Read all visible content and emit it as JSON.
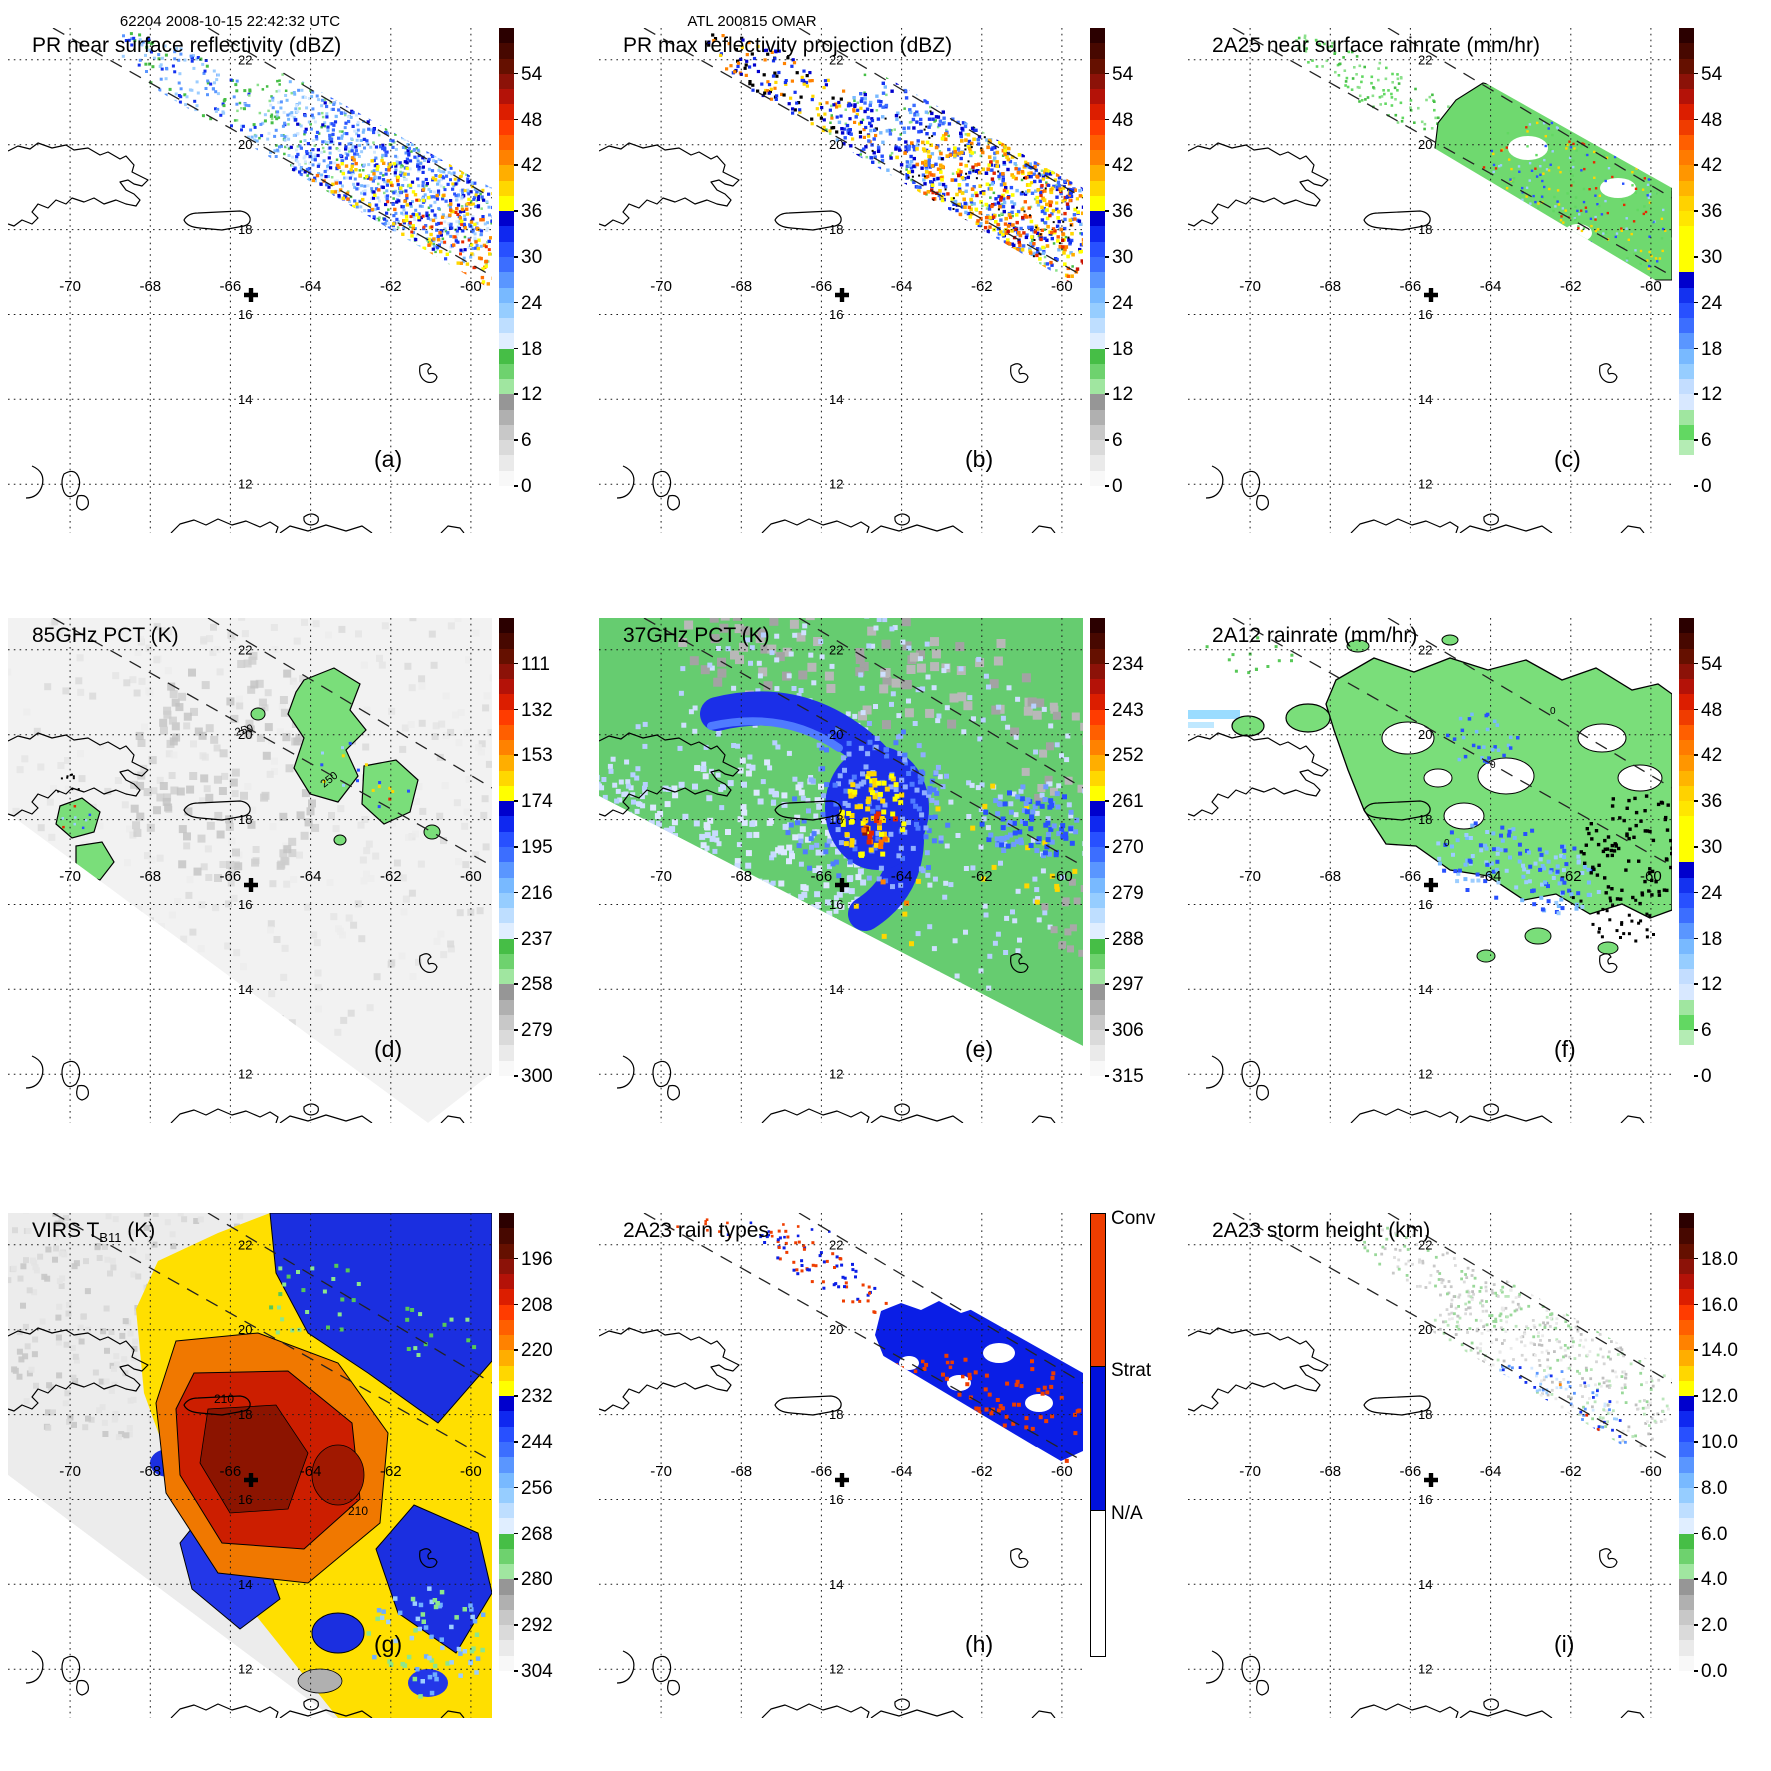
{
  "header": {
    "left": "62204 2008-10-15 22:42:32 UTC",
    "center": "ATL 200815 OMAR"
  },
  "axis": {
    "lon_ticks": [
      "-70",
      "-68",
      "-66",
      "-64",
      "-62",
      "-60"
    ],
    "lat_ticks": [
      "22",
      "20",
      "18",
      "16",
      "14",
      "12"
    ]
  },
  "colors": {
    "background": "#ffffff",
    "land_outline": "#000000",
    "grid": "#1a1a1a",
    "swath_dash": "#222222",
    "standard_bar": [
      "#2b0000",
      "#470800",
      "#651000",
      "#8c1208",
      "#b41208",
      "#dc1e00",
      "#ff3c00",
      "#ff5f00",
      "#ff8200",
      "#ffae00",
      "#ffd700",
      "#ffff00",
      "#0000cd",
      "#0f28f0",
      "#2850ff",
      "#3c6eff",
      "#5a96ff",
      "#78b9ff",
      "#96cdff",
      "#bedeff",
      "#e0eeff",
      "#46be46",
      "#6ed26e",
      "#a0e6a0",
      "#969696",
      "#b0b0b0",
      "#c8c8c8",
      "#dadada",
      "#eaeaea",
      "#f8f8f8"
    ],
    "rain_bar": [
      "#2b0000",
      "#470800",
      "#651000",
      "#8c1208",
      "#b41208",
      "#dc1e00",
      "#f03c00",
      "#ff5f00",
      "#ff7b00",
      "#ff9600",
      "#ffb400",
      "#ffd200",
      "#ffe600",
      "#ffff00",
      "#ffff00",
      "#ffff00",
      "#0000cd",
      "#1432f0",
      "#2850ff",
      "#3c6eff",
      "#5a96ff",
      "#78b9ff",
      "#96cdff",
      "#c3ddff",
      "#d8e8ff",
      "#a0e6a0",
      "#62d862",
      "#b4ecb4",
      "#ffffff",
      "#ffffff"
    ],
    "rain_types": {
      "conv": "#ee3d00",
      "strat": "#0011dd",
      "na": "#ffffff"
    }
  },
  "panels": [
    {
      "id": "a",
      "letter": "(a)",
      "title": {
        "prefix": "PR near surface reflectivity (dBZ)",
        "sub": "",
        "suffix": ""
      },
      "colorbar": {
        "type": "standard",
        "labels": [
          "54",
          "48",
          "42",
          "36",
          "30",
          "24",
          "18",
          "12",
          "6",
          "0"
        ]
      },
      "annotations": []
    },
    {
      "id": "b",
      "letter": "(b)",
      "title": {
        "prefix": "PR max reflectivity projection (dBZ)",
        "sub": "",
        "suffix": ""
      },
      "colorbar": {
        "type": "standard",
        "labels": [
          "54",
          "48",
          "42",
          "36",
          "30",
          "24",
          "18",
          "12",
          "6",
          "0"
        ]
      },
      "annotations": []
    },
    {
      "id": "c",
      "letter": "(c)",
      "title": {
        "prefix": "2A25 near surface rainrate (mm/hr)",
        "sub": "",
        "suffix": ""
      },
      "colorbar": {
        "type": "rain",
        "labels": [
          "54",
          "48",
          "42",
          "36",
          "30",
          "24",
          "18",
          "12",
          "6",
          "0"
        ]
      },
      "annotations": []
    },
    {
      "id": "d",
      "letter": "(d)",
      "title": {
        "prefix": "85GHz PCT (K)",
        "sub": "",
        "suffix": ""
      },
      "colorbar": {
        "type": "standard",
        "labels": [
          "111",
          "132",
          "153",
          "174",
          "195",
          "216",
          "237",
          "258",
          "279",
          "300"
        ]
      },
      "annotations": [
        "250",
        "250"
      ]
    },
    {
      "id": "e",
      "letter": "(e)",
      "title": {
        "prefix": "37GHz PCT (K)",
        "sub": "",
        "suffix": ""
      },
      "colorbar": {
        "type": "standard",
        "labels": [
          "234",
          "243",
          "252",
          "261",
          "270",
          "279",
          "288",
          "297",
          "306",
          "315"
        ]
      },
      "annotations": []
    },
    {
      "id": "f",
      "letter": "(f)",
      "title": {
        "prefix": "2A12 rainrate (mm/hr)",
        "sub": "",
        "suffix": ""
      },
      "colorbar": {
        "type": "rain",
        "labels": [
          "54",
          "48",
          "42",
          "36",
          "30",
          "24",
          "18",
          "12",
          "6",
          "0"
        ]
      },
      "annotations": [
        "0",
        "0",
        "0"
      ]
    },
    {
      "id": "g",
      "letter": "(g)",
      "title": {
        "prefix": "VIRS T",
        "sub": "B11",
        "suffix": " (K)"
      },
      "colorbar": {
        "type": "standard",
        "labels": [
          "196",
          "208",
          "220",
          "232",
          "244",
          "256",
          "268",
          "280",
          "292",
          "304"
        ]
      },
      "annotations": [
        "210",
        "210"
      ]
    },
    {
      "id": "h",
      "letter": "(h)",
      "title": {
        "prefix": "2A23 rain types",
        "sub": "",
        "suffix": ""
      },
      "colorbar": {
        "type": "raintype",
        "labels": [
          "Conv",
          "Strat",
          "N/A"
        ]
      },
      "annotations": []
    },
    {
      "id": "i",
      "letter": "(i)",
      "title": {
        "prefix": "2A23 storm height (km)",
        "sub": "",
        "suffix": ""
      },
      "colorbar": {
        "type": "standard",
        "labels": [
          "18.0",
          "16.0",
          "14.0",
          "12.0",
          "10.0",
          "8.0",
          "6.0",
          "4.0",
          "2.0",
          "0.0"
        ]
      },
      "annotations": []
    }
  ],
  "chart_data": {
    "type": "heatmap",
    "title": "ATL 200815 OMAR — 62204 2008-10-15 22:42:32 UTC",
    "x_ticks": [
      -70,
      -68,
      -66,
      -64,
      -62,
      -60
    ],
    "y_ticks": [
      22,
      20,
      18,
      16,
      14,
      12
    ],
    "grid": true,
    "panels": [
      {
        "label": "(a)",
        "title": "PR near surface reflectivity (dBZ)",
        "colorbar_ticks": [
          54,
          48,
          42,
          36,
          30,
          24,
          18,
          12,
          6,
          0
        ]
      },
      {
        "label": "(b)",
        "title": "PR max reflectivity projection (dBZ)",
        "colorbar_ticks": [
          54,
          48,
          42,
          36,
          30,
          24,
          18,
          12,
          6,
          0
        ]
      },
      {
        "label": "(c)",
        "title": "2A25 near surface rainrate (mm/hr)",
        "colorbar_ticks": [
          54,
          48,
          42,
          36,
          30,
          24,
          18,
          12,
          6,
          0
        ]
      },
      {
        "label": "(d)",
        "title": "85GHz PCT (K)",
        "colorbar_ticks": [
          111,
          132,
          153,
          174,
          195,
          216,
          237,
          258,
          279,
          300
        ],
        "contour_labels": [
          250
        ]
      },
      {
        "label": "(e)",
        "title": "37GHz PCT (K)",
        "colorbar_ticks": [
          234,
          243,
          252,
          261,
          270,
          279,
          288,
          297,
          306,
          315
        ]
      },
      {
        "label": "(f)",
        "title": "2A12 rainrate (mm/hr)",
        "colorbar_ticks": [
          54,
          48,
          42,
          36,
          30,
          24,
          18,
          12,
          6,
          0
        ],
        "contour_labels": [
          0
        ]
      },
      {
        "label": "(g)",
        "title": "VIRS TB11 (K)",
        "colorbar_ticks": [
          196,
          208,
          220,
          232,
          244,
          256,
          268,
          280,
          292,
          304
        ],
        "contour_labels": [
          210,
          210
        ]
      },
      {
        "label": "(h)",
        "title": "2A23 rain types",
        "categories": [
          "Conv",
          "Strat",
          "N/A"
        ]
      },
      {
        "label": "(i)",
        "title": "2A23 storm height (km)",
        "colorbar_ticks": [
          18.0,
          16.0,
          14.0,
          12.0,
          10.0,
          8.0,
          6.0,
          4.0,
          2.0,
          0.0
        ]
      }
    ]
  }
}
